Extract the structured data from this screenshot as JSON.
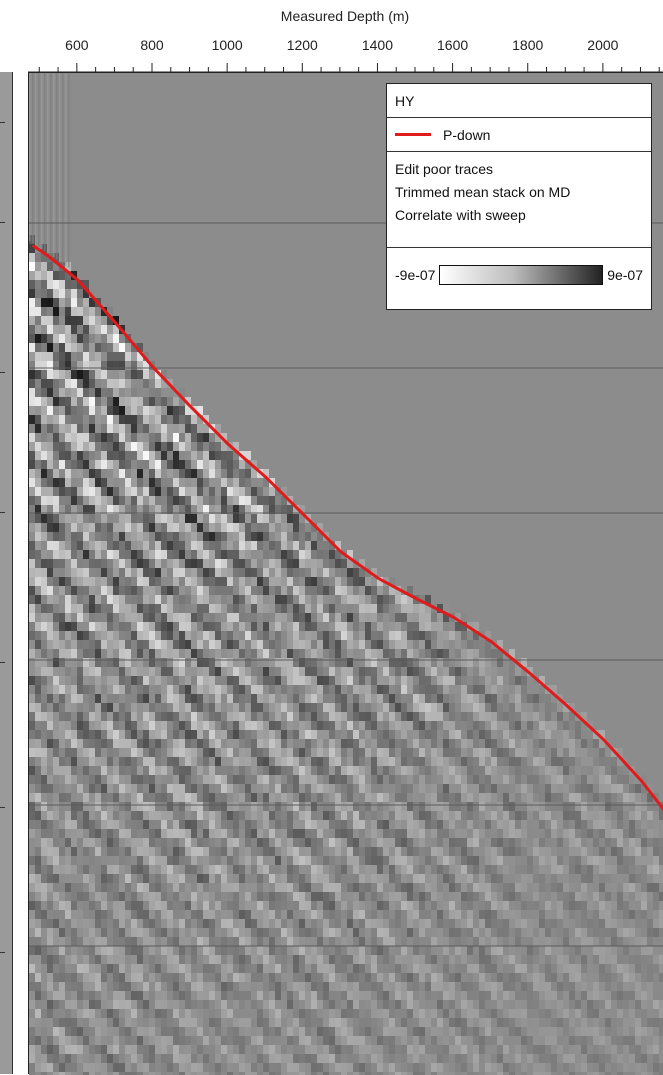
{
  "chart_data": {
    "type": "heatmap",
    "title": "",
    "xlabel": "Measured Depth (m)",
    "x_ticks": [
      600,
      800,
      1000,
      1200,
      1400,
      1600,
      1800,
      2000
    ],
    "xlim": [
      470,
      2160
    ],
    "legend": {
      "placement": "top-right",
      "title": "HY",
      "series": [
        {
          "name": "P-down",
          "color": "#e01b1b"
        }
      ],
      "processing_steps": [
        "Edit poor traces",
        "Trimmed mean stack on MD",
        "Correlate with sweep"
      ],
      "colorscale": {
        "min_label": "-9e-07",
        "max_label": "9e-07",
        "min": -9e-07,
        "max": 9e-07,
        "colors": [
          "#ffffff",
          "#222222"
        ]
      }
    },
    "background_color": "#8c8c8c",
    "grid": true,
    "p_down_pick": {
      "name": "P-down",
      "color": "#e01b1b",
      "x": [
        480,
        520,
        600,
        700,
        800,
        900,
        1000,
        1100,
        1200,
        1300,
        1400,
        1500,
        1600,
        1700,
        1800,
        1900,
        2000,
        2100,
        2160
      ]
    }
  }
}
